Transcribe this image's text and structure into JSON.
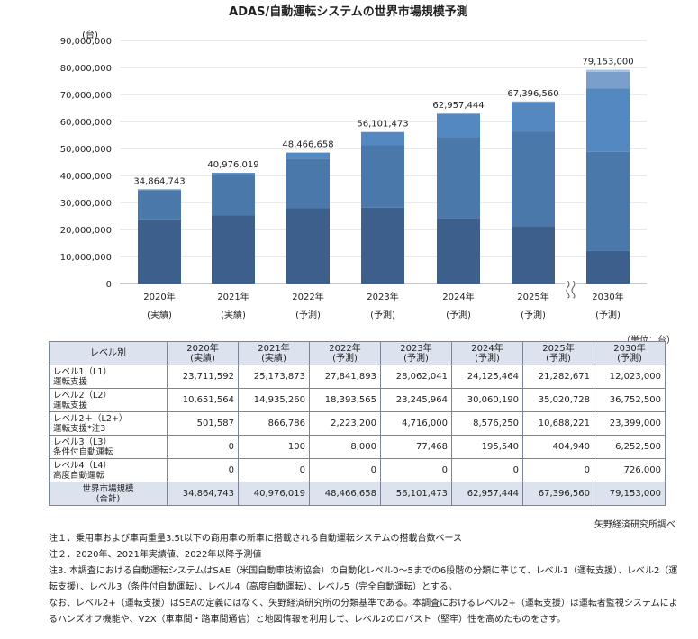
{
  "chart_data": {
    "type": "bar",
    "stacked": true,
    "title": "ADAS/自動運転システムの世界市場規模予測",
    "yunit": "(台)",
    "ylim": [
      0,
      90000000
    ],
    "yticks": [
      "0",
      "10,000,000",
      "20,000,000",
      "30,000,000",
      "40,000,000",
      "50,000,000",
      "60,000,000",
      "70,000,000",
      "80,000,000",
      "90,000,000"
    ],
    "categories": [
      {
        "year": "2020年",
        "sub": "(実績)"
      },
      {
        "year": "2021年",
        "sub": "(実績)"
      },
      {
        "year": "2022年",
        "sub": "(予測)"
      },
      {
        "year": "2023年",
        "sub": "(予測)"
      },
      {
        "year": "2024年",
        "sub": "(予測)"
      },
      {
        "year": "2025年",
        "sub": "(予測)"
      },
      {
        "year": "2030年",
        "sub": "(予測)"
      }
    ],
    "axis_break_before_last": true,
    "series": [
      {
        "values": [
          23711592,
          25173873,
          27841893,
          28062041,
          24125464,
          21282671,
          12023000
        ],
        "color": "#3d5f8c"
      },
      {
        "values": [
          10651564,
          14935260,
          18393565,
          23245964,
          30060190,
          35020728,
          36752500
        ],
        "color": "#4a78ab"
      },
      {
        "values": [
          501587,
          866786,
          2223200,
          4716000,
          8576250,
          10688221,
          23399000
        ],
        "color": "#5488c0"
      },
      {
        "values": [
          0,
          100,
          8000,
          77468,
          195540,
          404940,
          6252500
        ],
        "color": "#7b9fcb"
      },
      {
        "values": [
          0,
          0,
          0,
          0,
          0,
          0,
          726000
        ],
        "color": "#a9c0de"
      }
    ],
    "totals": [
      "34,864,743",
      "40,976,019",
      "48,466,658",
      "56,101,473",
      "62,957,444",
      "67,396,560",
      "79,153,000"
    ]
  },
  "table": {
    "unit_note": "（単位：台）",
    "header_label": "レベル別",
    "columns": [
      {
        "year": "2020年",
        "sub": "(実績)"
      },
      {
        "year": "2021年",
        "sub": "(実績)"
      },
      {
        "year": "2022年",
        "sub": "(予測)"
      },
      {
        "year": "2023年",
        "sub": "(予測)"
      },
      {
        "year": "2024年",
        "sub": "(予測)"
      },
      {
        "year": "2025年",
        "sub": "(予測)"
      },
      {
        "year": "2030年",
        "sub": "(予測)"
      }
    ],
    "rows": [
      {
        "label": "レベル1（L1）\n運転支援",
        "values": [
          "23,711,592",
          "25,173,873",
          "27,841,893",
          "28,062,041",
          "24,125,464",
          "21,282,671",
          "12,023,000"
        ]
      },
      {
        "label": "レベル2（L2）\n運転支援",
        "values": [
          "10,651,564",
          "14,935,260",
          "18,393,565",
          "23,245,964",
          "30,060,190",
          "35,020,728",
          "36,752,500"
        ]
      },
      {
        "label": "レベル2＋（L2+）\n運転支援*注3",
        "values": [
          "501,587",
          "866,786",
          "2,223,200",
          "4,716,000",
          "8,576,250",
          "10,688,221",
          "23,399,000"
        ]
      },
      {
        "label": "レベル3（L3）\n条件付自動運転",
        "values": [
          "0",
          "100",
          "8,000",
          "77,468",
          "195,540",
          "404,940",
          "6,252,500"
        ]
      },
      {
        "label": "レベル4（L4）\n高度自動運転",
        "values": [
          "0",
          "0",
          "0",
          "0",
          "0",
          "0",
          "726,000"
        ]
      }
    ],
    "total": {
      "label": "世界市場規模\n(合計)",
      "values": [
        "34,864,743",
        "40,976,019",
        "48,466,658",
        "56,101,473",
        "62,957,444",
        "67,396,560",
        "79,153,000"
      ]
    }
  },
  "source": "矢野経済研究所調べ",
  "notes": [
    "注１．乗用車および車両重量3.5t以下の商用車の新車に搭載される自動運転システムの搭載台数ベース",
    "注２．2020年、2021年実績値、2022年以降予測値",
    "注3. 本調査における自動運転システムはSAE（米国自動車技術協会）の自動化レベル0～5までの6段階の分類に準じて、レベル1（運転支援）、レベル2（運転支援）、レベル3（条件付自動運転）、レベル4（高度自動運転）、レベル5（完全自動運転）とする。",
    "なお、レベル2+（運転支援）はSEAの定義にはなく、矢野経済研究所の分類基準である。本調査におけるレベル2+（運転支援）は運転者監視システムによるハンズオフ機能や、V2X（車車間・路車間通信）と地図情報を利用して、レベル2のロバスト（堅牢）性を高めたものをさす。"
  ]
}
